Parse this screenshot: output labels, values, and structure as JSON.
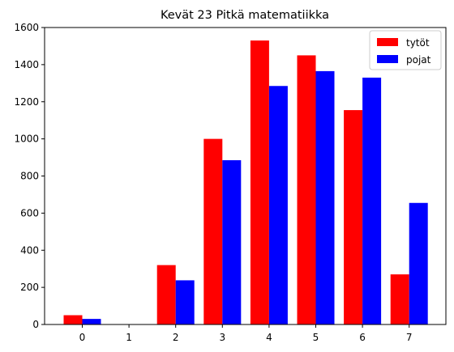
{
  "chart_data": {
    "type": "bar",
    "title": "Kevät 23 Pitkä matematiikka",
    "xlabel": "",
    "ylabel": "",
    "categories": [
      "0",
      "1",
      "2",
      "3",
      "4",
      "5",
      "6",
      "7"
    ],
    "series": [
      {
        "name": "tytöt",
        "color": "#ff0000",
        "values": [
          50,
          0,
          320,
          1000,
          1530,
          1450,
          1155,
          270
        ]
      },
      {
        "name": "pojat",
        "color": "#0000ff",
        "values": [
          30,
          0,
          238,
          885,
          1285,
          1365,
          1330,
          655
        ]
      }
    ],
    "yticks": [
      "0",
      "200",
      "400",
      "600",
      "800",
      "1000",
      "1200",
      "1400",
      "1600"
    ],
    "ylim": [
      0,
      1600
    ],
    "legend_position": "top-right",
    "grid": false
  }
}
